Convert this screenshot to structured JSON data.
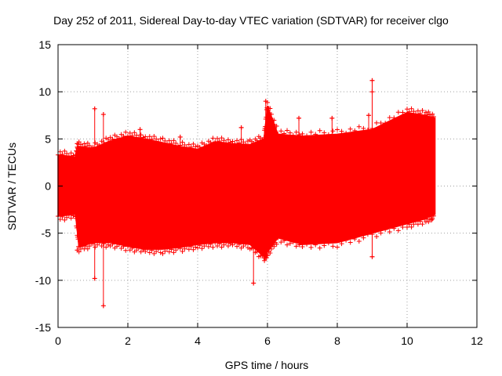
{
  "chart_data": {
    "type": "scatter",
    "title": "Day 252 of 2011, Sidereal Day-to-day VTEC variation (SDTVAR) for receiver clgo",
    "xlabel": "GPS time / hours",
    "ylabel": "SDTVAR / TECUs",
    "xlim": [
      0,
      12
    ],
    "ylim": [
      -15,
      15
    ],
    "xticks": [
      0,
      2,
      4,
      6,
      8,
      10,
      12
    ],
    "yticks": [
      -15,
      -10,
      -5,
      0,
      5,
      10,
      15
    ],
    "grid": true,
    "series": [
      {
        "name": "SDTVAR",
        "color": "#ff0000",
        "marker": "plus",
        "data_extent_x": [
          0.0,
          10.8
        ],
        "envelope": [
          {
            "x": 0.0,
            "low": -3.2,
            "high": 3.3
          },
          {
            "x": 0.5,
            "low": -3.0,
            "high": 3.1
          },
          {
            "x": 0.6,
            "low": -6.5,
            "high": 4.2
          },
          {
            "x": 1.0,
            "low": -6.0,
            "high": 4.0
          },
          {
            "x": 1.5,
            "low": -6.0,
            "high": 4.8
          },
          {
            "x": 2.0,
            "low": -6.4,
            "high": 5.3
          },
          {
            "x": 2.5,
            "low": -6.7,
            "high": 5.0
          },
          {
            "x": 3.0,
            "low": -6.7,
            "high": 4.6
          },
          {
            "x": 3.5,
            "low": -6.5,
            "high": 4.2
          },
          {
            "x": 4.0,
            "low": -6.2,
            "high": 3.9
          },
          {
            "x": 4.5,
            "low": -6.0,
            "high": 4.7
          },
          {
            "x": 5.0,
            "low": -6.0,
            "high": 4.5
          },
          {
            "x": 5.5,
            "low": -6.2,
            "high": 4.4
          },
          {
            "x": 5.9,
            "low": -7.5,
            "high": 5.0
          },
          {
            "x": 6.0,
            "low": -7.0,
            "high": 8.5
          },
          {
            "x": 6.3,
            "low": -5.5,
            "high": 5.5
          },
          {
            "x": 7.0,
            "low": -6.2,
            "high": 5.3
          },
          {
            "x": 8.0,
            "low": -6.0,
            "high": 5.5
          },
          {
            "x": 9.0,
            "low": -5.0,
            "high": 6.0
          },
          {
            "x": 10.0,
            "low": -4.0,
            "high": 7.8
          },
          {
            "x": 10.5,
            "low": -3.5,
            "high": 7.5
          },
          {
            "x": 10.8,
            "low": -3.0,
            "high": 7.2
          }
        ],
        "outliers": [
          {
            "x": 0.55,
            "y": 4.5
          },
          {
            "x": 0.55,
            "y": -6.8
          },
          {
            "x": 1.05,
            "y": 8.2
          },
          {
            "x": 1.05,
            "y": -9.8
          },
          {
            "x": 1.3,
            "y": 7.6
          },
          {
            "x": 1.3,
            "y": -12.7
          },
          {
            "x": 2.35,
            "y": 6.0
          },
          {
            "x": 3.5,
            "y": 5.2
          },
          {
            "x": 5.25,
            "y": 6.2
          },
          {
            "x": 5.6,
            "y": -10.3
          },
          {
            "x": 5.95,
            "y": 9.0
          },
          {
            "x": 6.9,
            "y": 7.2
          },
          {
            "x": 7.85,
            "y": 7.2
          },
          {
            "x": 9.0,
            "y": 11.2
          },
          {
            "x": 9.0,
            "y": 10.0
          },
          {
            "x": 8.9,
            "y": 7.5
          },
          {
            "x": 9.0,
            "y": -7.5
          },
          {
            "x": 10.7,
            "y": -3.6
          }
        ]
      }
    ]
  }
}
